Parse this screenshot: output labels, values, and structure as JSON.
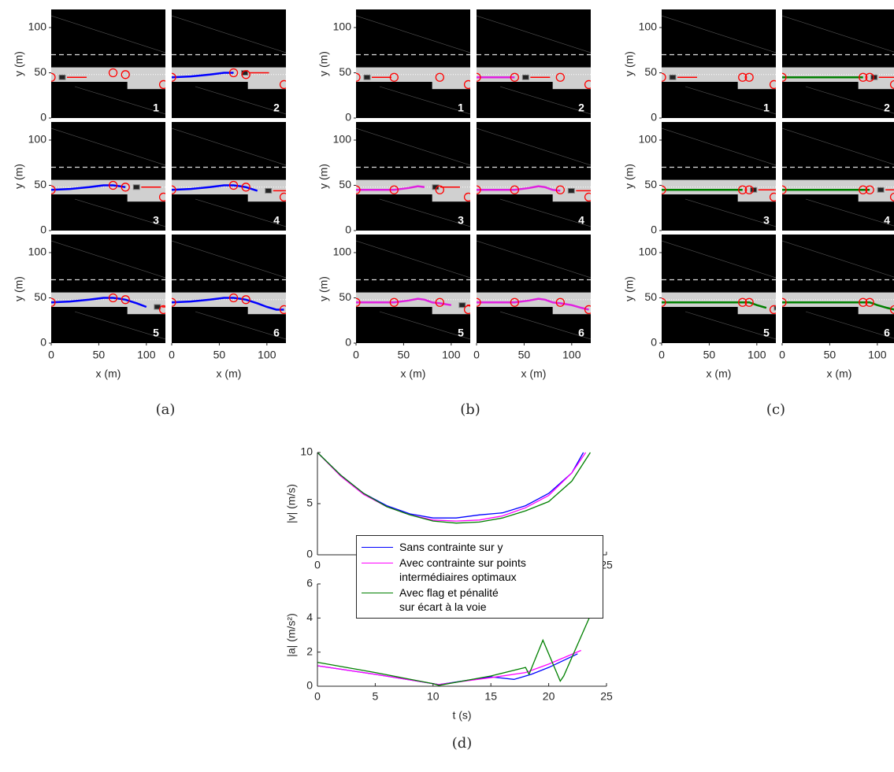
{
  "chart_data": [
    {
      "type": "scene",
      "caption": "(a)",
      "xlabel": "x (m)",
      "ylabel": "y (m)",
      "xlim": [
        0,
        120
      ],
      "ylim": [
        0,
        120
      ],
      "xticks": [
        0,
        50,
        100
      ],
      "yticks": [
        0,
        50,
        100
      ],
      "color": "#0000ff",
      "panels": [
        "1",
        "2",
        "3",
        "4",
        "5",
        "6"
      ],
      "waypoints": {
        "x": [
          0,
          65,
          78,
          118
        ],
        "y": [
          45,
          50,
          48,
          37
        ]
      },
      "trajectories": [
        {
          "x": [
            0
          ],
          "y": [
            45
          ]
        },
        {
          "x": [
            0,
            20,
            40,
            55,
            65
          ],
          "y": [
            45,
            46,
            48,
            50,
            50
          ]
        },
        {
          "x": [
            0,
            20,
            40,
            55,
            65,
            72,
            78
          ],
          "y": [
            45,
            46,
            48,
            50,
            50,
            49,
            48
          ]
        },
        {
          "x": [
            0,
            20,
            40,
            55,
            65,
            72,
            78,
            90
          ],
          "y": [
            45,
            46,
            48,
            50,
            50,
            49,
            48,
            44
          ]
        },
        {
          "x": [
            0,
            20,
            40,
            55,
            65,
            72,
            78,
            90,
            100
          ],
          "y": [
            45,
            46,
            48,
            50,
            50,
            49,
            48,
            44,
            40
          ]
        },
        {
          "x": [
            0,
            20,
            40,
            55,
            65,
            72,
            78,
            90,
            100,
            110,
            118
          ],
          "y": [
            45,
            46,
            48,
            50,
            50,
            49,
            48,
            44,
            40,
            37,
            37
          ]
        }
      ]
    },
    {
      "type": "scene",
      "caption": "(b)",
      "xlabel": "x (m)",
      "ylabel": "y (m)",
      "xlim": [
        0,
        120
      ],
      "ylim": [
        0,
        120
      ],
      "xticks": [
        0,
        50,
        100
      ],
      "yticks": [
        0,
        50,
        100
      ],
      "color": "#e020e0",
      "panels": [
        "1",
        "2",
        "3",
        "4",
        "5",
        "6"
      ],
      "waypoints": {
        "x": [
          0,
          40,
          88,
          118
        ],
        "y": [
          45,
          45,
          45,
          37
        ]
      },
      "trajectories": [
        {
          "x": [
            0
          ],
          "y": [
            45
          ]
        },
        {
          "x": [
            0,
            20,
            40
          ],
          "y": [
            45,
            45,
            45
          ]
        },
        {
          "x": [
            0,
            20,
            40,
            55,
            65,
            72
          ],
          "y": [
            45,
            45,
            45,
            47,
            49,
            48
          ]
        },
        {
          "x": [
            0,
            20,
            40,
            55,
            65,
            72,
            80,
            88
          ],
          "y": [
            45,
            45,
            45,
            47,
            49,
            48,
            45,
            44
          ]
        },
        {
          "x": [
            0,
            20,
            40,
            55,
            65,
            72,
            80,
            88,
            100
          ],
          "y": [
            45,
            45,
            45,
            47,
            49,
            48,
            45,
            44,
            42
          ]
        },
        {
          "x": [
            0,
            20,
            40,
            55,
            65,
            72,
            80,
            88,
            100,
            110,
            118
          ],
          "y": [
            45,
            45,
            45,
            47,
            49,
            48,
            45,
            44,
            42,
            39,
            37
          ]
        }
      ]
    },
    {
      "type": "scene",
      "caption": "(c)",
      "xlabel": "x (m)",
      "ylabel": "y (m)",
      "xlim": [
        0,
        120
      ],
      "ylim": [
        0,
        120
      ],
      "xticks": [
        0,
        50,
        100
      ],
      "yticks": [
        0,
        50,
        100
      ],
      "color": "#008000",
      "panels": [
        "1",
        "2",
        "3",
        "4",
        "5",
        "6"
      ],
      "waypoints": {
        "x": [
          0,
          85,
          92,
          118
        ],
        "y": [
          45,
          45,
          45,
          37
        ]
      },
      "trajectories": [
        {
          "x": [
            0
          ],
          "y": [
            45
          ]
        },
        {
          "x": [
            0,
            20,
            40,
            60,
            85
          ],
          "y": [
            45,
            45,
            45,
            45,
            45
          ]
        },
        {
          "x": [
            0,
            20,
            40,
            60,
            85
          ],
          "y": [
            45,
            45,
            45,
            45,
            45
          ]
        },
        {
          "x": [
            0,
            20,
            40,
            60,
            85,
            92
          ],
          "y": [
            45,
            45,
            45,
            45,
            45,
            45
          ]
        },
        {
          "x": [
            0,
            20,
            40,
            60,
            85,
            92,
            100,
            110
          ],
          "y": [
            45,
            45,
            45,
            45,
            45,
            45,
            42,
            39
          ]
        },
        {
          "x": [
            0,
            20,
            40,
            60,
            85,
            92,
            100,
            110,
            118
          ],
          "y": [
            45,
            45,
            45,
            45,
            45,
            45,
            42,
            39,
            37
          ]
        }
      ]
    },
    {
      "type": "line",
      "ylabel": "|v| (m/s)",
      "xlim": [
        0,
        25
      ],
      "ylim": [
        0,
        10
      ],
      "xticks": [
        0,
        25
      ],
      "yticks": [
        0,
        5,
        10
      ],
      "series": [
        {
          "name": "Sans contrainte sur y",
          "color": "#0000ff",
          "x": [
            0,
            2,
            4,
            6,
            8,
            10,
            12,
            14,
            16,
            18,
            20,
            22,
            23
          ],
          "values": [
            10,
            7.8,
            6.0,
            4.8,
            4.0,
            3.6,
            3.6,
            3.9,
            4.1,
            4.8,
            6.0,
            8.0,
            10
          ]
        },
        {
          "name": "Avec contrainte sur points\nintermédiaires optimaux",
          "color": "#ff00ff",
          "x": [
            0,
            2,
            4,
            6,
            8,
            10,
            12,
            14,
            16,
            18,
            20,
            22,
            23.2
          ],
          "values": [
            10,
            7.7,
            5.9,
            4.7,
            3.9,
            3.4,
            3.3,
            3.4,
            3.8,
            4.6,
            5.8,
            8.0,
            10
          ]
        },
        {
          "name": "Avec flag et pénalité\nsur écart à la voie",
          "color": "#008000",
          "x": [
            0,
            2,
            4,
            6,
            8,
            10,
            12,
            14,
            16,
            18,
            20,
            22,
            23.6
          ],
          "values": [
            10,
            7.8,
            6.0,
            4.7,
            3.9,
            3.3,
            3.1,
            3.2,
            3.6,
            4.3,
            5.2,
            7.2,
            10
          ]
        }
      ]
    },
    {
      "type": "line",
      "ylabel": "|a| (m/s²)",
      "xlabel": "t (s)",
      "caption": "(d)",
      "xlim": [
        0,
        25
      ],
      "ylim": [
        0,
        6
      ],
      "xticks": [
        0,
        5,
        10,
        15,
        20,
        25
      ],
      "yticks": [
        0,
        2,
        4,
        6
      ],
      "series": [
        {
          "color": "#0000ff",
          "x": [
            0,
            5,
            10,
            10.5,
            15,
            17,
            18.5,
            20,
            22.5
          ],
          "values": [
            1.2,
            0.7,
            0.15,
            0.1,
            0.55,
            0.4,
            0.7,
            1.1,
            1.9
          ]
        },
        {
          "color": "#ff00ff",
          "x": [
            0,
            5,
            10,
            10.5,
            15,
            18,
            20,
            22.8
          ],
          "values": [
            1.2,
            0.7,
            0.15,
            0.1,
            0.5,
            0.8,
            1.3,
            2.1
          ]
        },
        {
          "color": "#008000",
          "x": [
            0,
            5,
            10,
            10.5,
            15,
            18,
            18.3,
            19.5,
            21,
            21.3,
            23.6
          ],
          "values": [
            1.4,
            0.8,
            0.15,
            0.05,
            0.6,
            1.1,
            0.7,
            2.7,
            0.3,
            0.6,
            4.15
          ]
        }
      ]
    }
  ]
}
